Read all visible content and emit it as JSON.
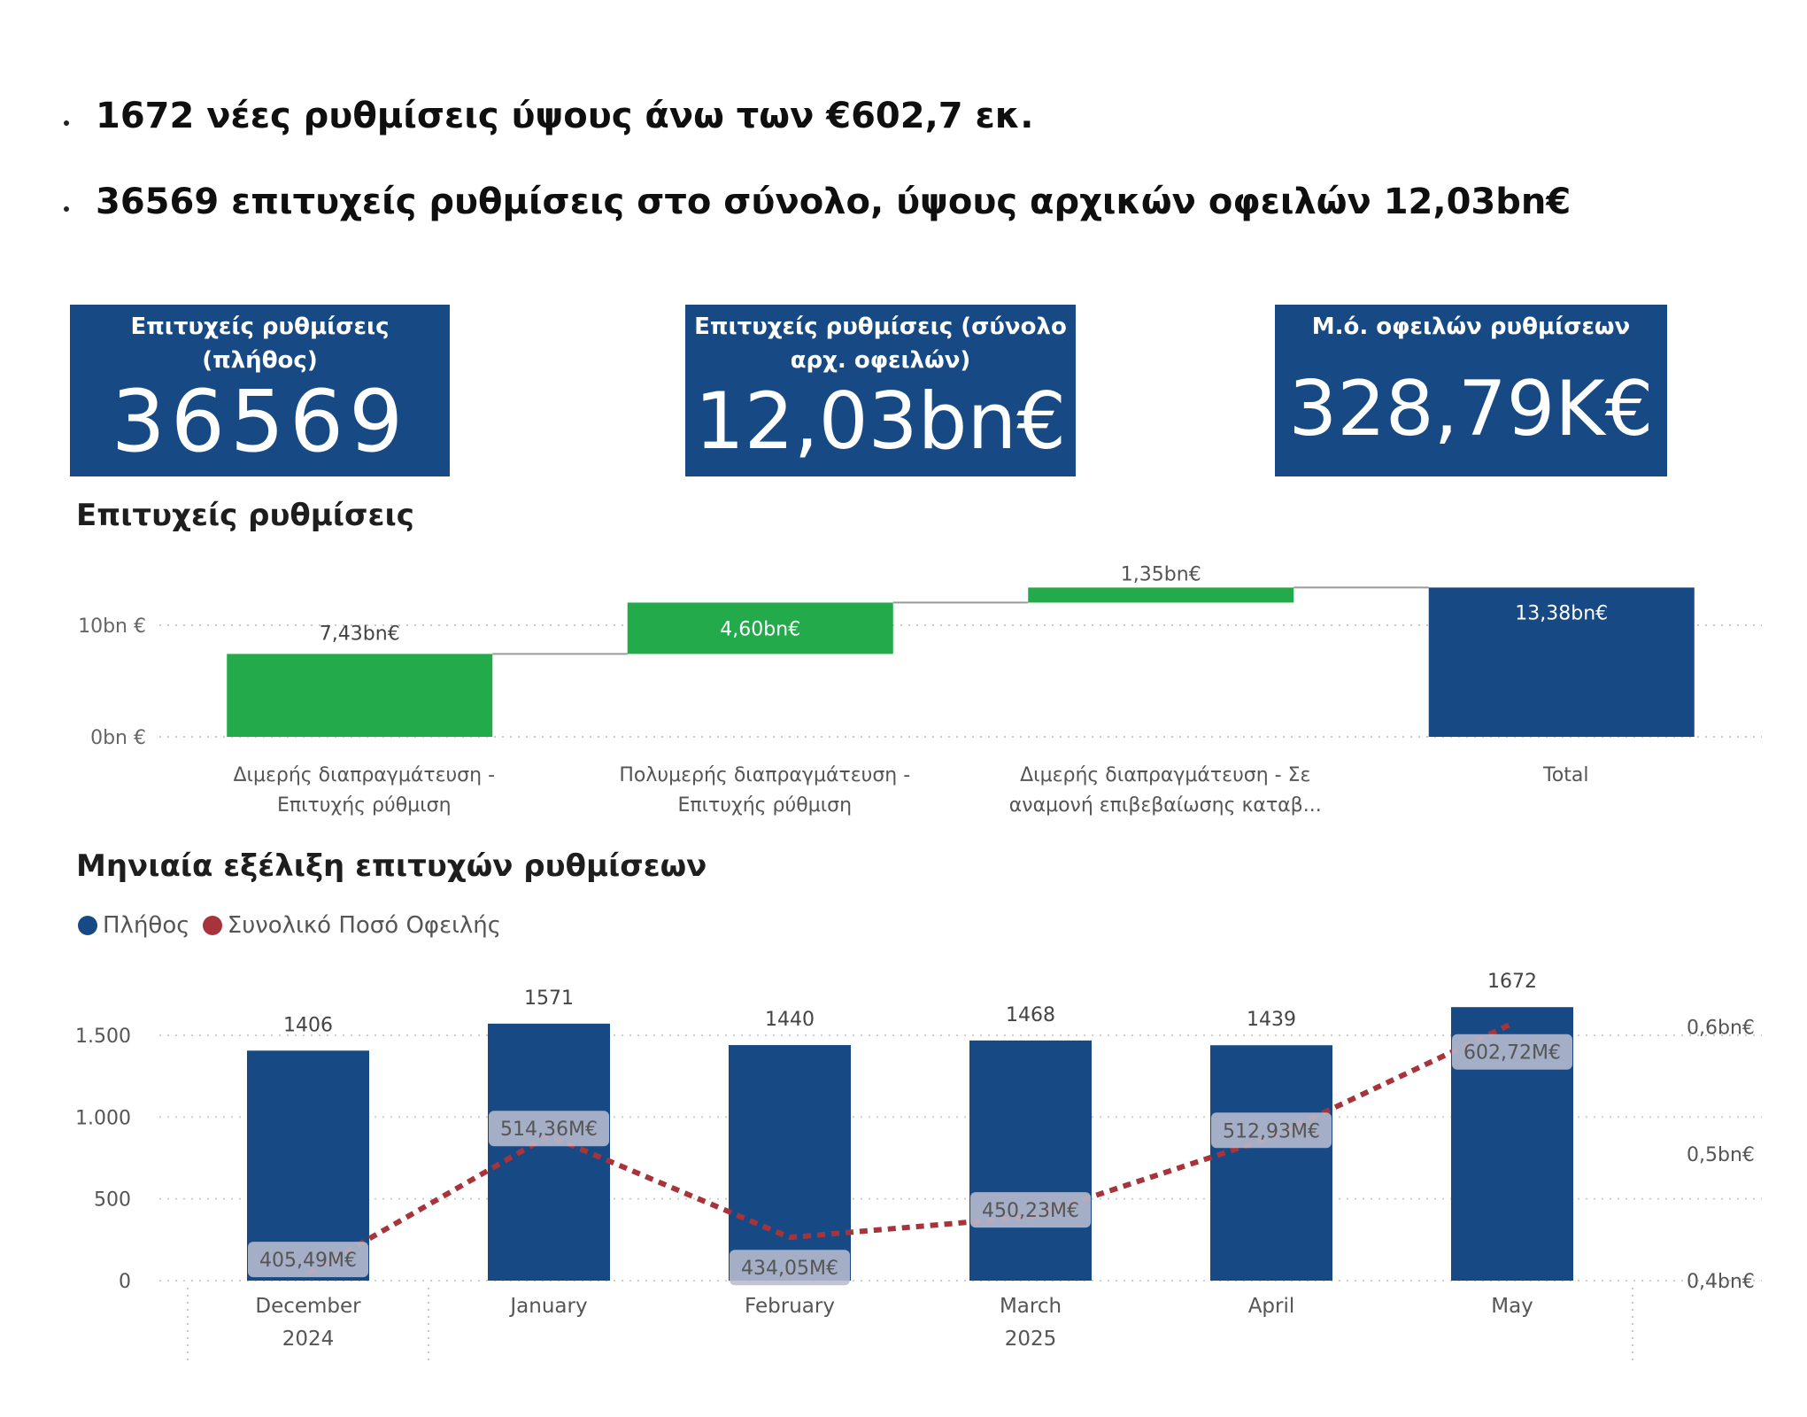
{
  "bullets": [
    "1672 νέες ρυθμίσεις ύψους άνω των €602,7 εκ.",
    "36569  επιτυχείς ρυθμίσεις στο σύνολο, ύψους αρχικών οφειλών   12,03bn€"
  ],
  "kpis": [
    {
      "label_line1": "Επιτυχείς ρυθμίσεις",
      "label_line2": "(πλήθος)",
      "value": "36569"
    },
    {
      "label_line1": "Επιτυχείς ρυθμίσεις (σύνολο",
      "label_line2": "αρχ. οφειλών)",
      "value": "12,03bn€"
    },
    {
      "label_line1": "Μ.ό. οφειλών ρυθμίσεων",
      "label_line2": "",
      "value": "328,79K€"
    }
  ],
  "colors": {
    "kpi_bg": "#174a85",
    "increase": "#22aa4b",
    "total": "#174a85",
    "bar": "#174a85",
    "line": "#a8343b",
    "label_box": "#b8bccf"
  },
  "waterfall_title": "Επιτυχείς ρυθμίσεις",
  "monthly_title": "Μηνιαία εξέλιξη επιτυχών ρυθμίσεων",
  "legend": {
    "count": "Πλήθος",
    "amount": "Συνολικό Ποσό Οφειλής"
  },
  "chart_data": [
    {
      "type": "waterfall",
      "title": "Επιτυχείς ρυθμίσεις",
      "categories": [
        [
          "Διμερής διαπραγμάτευση -",
          "Επιτυχής ρύθμιση"
        ],
        [
          "Πολυμερής διαπραγμάτευση -",
          "Επιτυχής ρύθμιση"
        ],
        [
          "Διμερής διαπραγμάτευση - Σε",
          "αναμονή επιβεβαίωσης καταβ..."
        ],
        [
          "Total"
        ]
      ],
      "values": [
        7.43,
        4.6,
        1.35,
        13.38
      ],
      "value_labels": [
        "7,43bn€",
        "4,60bn€",
        "1,35bn€",
        "13,38bn€"
      ],
      "is_total": [
        false,
        false,
        false,
        true
      ],
      "y_ticks": [
        {
          "v": 0,
          "label": "0bn €"
        },
        {
          "v": 10,
          "label": "10bn €"
        }
      ],
      "ylim": [
        0,
        15
      ],
      "grid": true
    },
    {
      "type": "bar+line",
      "title": "Μηνιαία εξέλιξη επιτυχών ρυθμίσεων",
      "categories": [
        "December",
        "January",
        "February",
        "March",
        "April",
        "May"
      ],
      "year_labels": [
        {
          "label": "2024",
          "from": 0,
          "to": 0
        },
        {
          "label": "2025",
          "from": 1,
          "to": 5
        }
      ],
      "series": [
        {
          "name": "Πλήθος",
          "type": "bar",
          "axis": "left",
          "values": [
            1406,
            1571,
            1440,
            1468,
            1439,
            1672
          ],
          "labels": [
            "1406",
            "1571",
            "1440",
            "1468",
            "1439",
            "1672"
          ]
        },
        {
          "name": "Συνολικό Ποσό Οφειλής",
          "type": "line",
          "axis": "right",
          "values": [
            405.49,
            514.36,
            434.05,
            450.23,
            512.93,
            602.72
          ],
          "labels": [
            "405,49M€",
            "514,36M€",
            "434,05M€",
            "450,23M€",
            "512,93M€",
            "602,72M€"
          ]
        }
      ],
      "y_left_ticks": [
        {
          "v": 0,
          "label": "0"
        },
        {
          "v": 500,
          "label": "500"
        },
        {
          "v": 1000,
          "label": "1.000"
        },
        {
          "v": 1500,
          "label": "1.500"
        }
      ],
      "y_left_lim": [
        0,
        1571
      ],
      "y_right_ticks": [
        {
          "v": 400,
          "label": "0,4bn€"
        },
        {
          "v": 500,
          "label": "0,5bn€"
        },
        {
          "v": 600,
          "label": "0,6bn€"
        }
      ],
      "y_right_lim": [
        400,
        600
      ],
      "grid": true,
      "legend_position": "top-left"
    }
  ]
}
